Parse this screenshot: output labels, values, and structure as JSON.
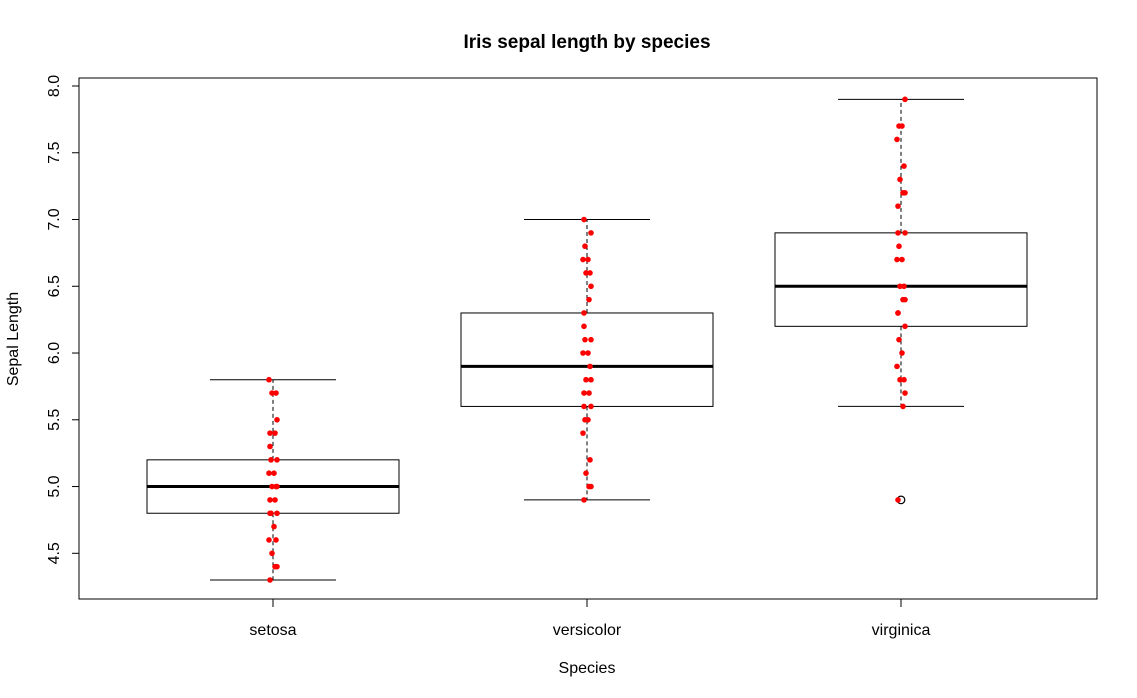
{
  "chart_data": {
    "type": "box",
    "title": "Iris sepal length by species",
    "xlabel": "Species",
    "ylabel": "Sepal Length",
    "categories": [
      "setosa",
      "versicolor",
      "virginica"
    ],
    "ylim": [
      4.3,
      7.9
    ],
    "yticks": [
      4.5,
      5.0,
      5.5,
      6.0,
      6.5,
      7.0,
      7.5,
      8.0
    ],
    "ytick_labels": [
      "4.5",
      "5.0",
      "5.5",
      "6.0",
      "6.5",
      "7.0",
      "7.5",
      "8.0"
    ],
    "grid": false,
    "legend": "none",
    "box_fill": "#ffffff",
    "point_color": "#ff0000",
    "series": [
      {
        "category": "setosa",
        "whisker_low": 4.3,
        "q1": 4.8,
        "median": 5.0,
        "q3": 5.2,
        "whisker_high": 5.8,
        "outliers": [],
        "points": [
          4.3,
          4.4,
          4.4,
          4.5,
          4.6,
          4.6,
          4.7,
          4.8,
          4.8,
          4.8,
          4.9,
          4.9,
          5.0,
          5.0,
          5.0,
          5.1,
          5.1,
          5.2,
          5.2,
          5.3,
          5.4,
          5.4,
          5.5,
          5.7,
          5.7,
          5.8
        ]
      },
      {
        "category": "versicolor",
        "whisker_low": 4.9,
        "q1": 5.6,
        "median": 5.9,
        "q3": 6.3,
        "whisker_high": 7.0,
        "outliers": [],
        "points": [
          4.9,
          5.0,
          5.0,
          5.1,
          5.2,
          5.4,
          5.5,
          5.5,
          5.6,
          5.6,
          5.7,
          5.7,
          5.8,
          5.8,
          5.9,
          6.0,
          6.0,
          6.1,
          6.1,
          6.2,
          6.3,
          6.4,
          6.5,
          6.6,
          6.6,
          6.7,
          6.7,
          6.8,
          6.9,
          7.0
        ]
      },
      {
        "category": "virginica",
        "whisker_low": 5.6,
        "q1": 6.2,
        "median": 6.5,
        "q3": 6.9,
        "whisker_high": 7.9,
        "outliers": [
          4.9
        ],
        "points": [
          4.9,
          5.6,
          5.7,
          5.8,
          5.8,
          5.9,
          6.0,
          6.1,
          6.2,
          6.3,
          6.3,
          6.4,
          6.4,
          6.5,
          6.5,
          6.7,
          6.7,
          6.8,
          6.9,
          6.9,
          7.1,
          7.2,
          7.2,
          7.3,
          7.4,
          7.6,
          7.7,
          7.7,
          7.9
        ]
      }
    ]
  }
}
